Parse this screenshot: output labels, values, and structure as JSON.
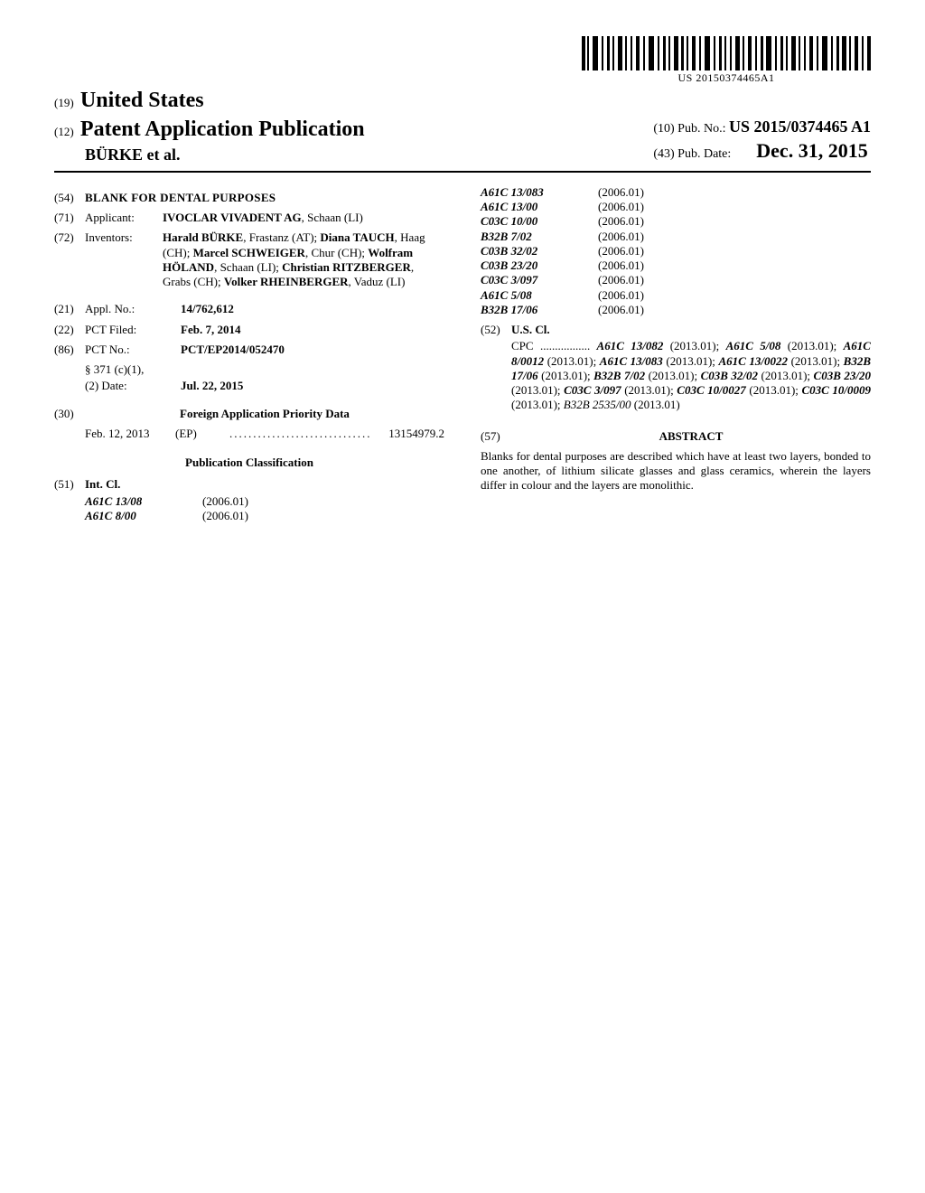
{
  "barcode": {
    "text": "US 20150374465A1"
  },
  "header": {
    "country_prefix": "(19)",
    "country": "United States",
    "pub_prefix": "(12)",
    "pub_title": "Patent Application Publication",
    "authors": "BÜRKE et al.",
    "pubno_prefix": "(10)",
    "pubno_label": "Pub. No.:",
    "pubno": "US 2015/0374465 A1",
    "pubdate_prefix": "(43)",
    "pubdate_label": "Pub. Date:",
    "pubdate": "Dec. 31, 2015"
  },
  "left": {
    "title_num": "(54)",
    "title": "BLANK FOR DENTAL PURPOSES",
    "applicant_num": "(71)",
    "applicant_label": "Applicant:",
    "applicant": "IVOCLAR VIVADENT AG",
    "applicant_loc": ", Schaan (LI)",
    "inventors_num": "(72)",
    "inventors_label": "Inventors:",
    "inventors_html": "Harald BÜRKE|, Frastanz (AT); |Diana TAUCH|, Haag (CH); |Marcel SCHWEIGER|, Chur (CH); |Wolfram HÖLAND|, Schaan (LI); |Christian RITZBERGER|, Grabs (CH); |Volker RHEINBERGER|, Vaduz (LI)",
    "appl_num": "(21)",
    "appl_label": "Appl. No.:",
    "appl_val": "14/762,612",
    "pct_filed_num": "(22)",
    "pct_filed_label": "PCT Filed:",
    "pct_filed_val": "Feb. 7, 2014",
    "pct_no_num": "(86)",
    "pct_no_label": "PCT No.:",
    "pct_no_val": "PCT/EP2014/052470",
    "s371_label": "§ 371 (c)(1),",
    "s371_date_label": "(2) Date:",
    "s371_date_val": "Jul. 22, 2015",
    "foreign_num": "(30)",
    "foreign_head": "Foreign Application Priority Data",
    "foreign_date": "Feb. 12, 2013",
    "foreign_cc": "(EP)",
    "foreign_app": "13154979.2",
    "pubclass_head": "Publication Classification",
    "intcl_num": "(51)",
    "intcl_label": "Int. Cl.",
    "intcl_left": [
      {
        "code": "A61C 13/08",
        "ver": "(2006.01)"
      },
      {
        "code": "A61C 8/00",
        "ver": "(2006.01)"
      }
    ]
  },
  "right": {
    "intcl_right": [
      {
        "code": "A61C 13/083",
        "ver": "(2006.01)"
      },
      {
        "code": "A61C 13/00",
        "ver": "(2006.01)"
      },
      {
        "code": "C03C 10/00",
        "ver": "(2006.01)"
      },
      {
        "code": "B32B 7/02",
        "ver": "(2006.01)"
      },
      {
        "code": "C03B 32/02",
        "ver": "(2006.01)"
      },
      {
        "code": "C03B 23/20",
        "ver": "(2006.01)"
      },
      {
        "code": "C03C 3/097",
        "ver": "(2006.01)"
      },
      {
        "code": "A61C 5/08",
        "ver": "(2006.01)"
      },
      {
        "code": "B32B 17/06",
        "ver": "(2006.01)"
      }
    ],
    "uscl_num": "(52)",
    "uscl_label": "U.S. Cl.",
    "cpc_label": "CPC",
    "cpc_text": "................. <b><i>A61C 13/082</i></b> (2013.01); <b><i>A61C 5/08</i></b> (2013.01); <b><i>A61C 8/0012</i></b> (2013.01); <b><i>A61C 13/083</i></b> (2013.01); <b><i>A61C 13/0022</i></b> (2013.01); <b><i>B32B 17/06</i></b> (2013.01); <b><i>B32B 7/02</i></b> (2013.01); <b><i>C03B 32/02</i></b> (2013.01); <b><i>C03B 23/20</i></b> (2013.01); <b><i>C03C 3/097</i></b> (2013.01); <b><i>C03C 10/0027</i></b> (2013.01); <b><i>C03C 10/0009</i></b> (2013.01); <i>B32B 2535/00</i> (2013.01)",
    "abstract_num": "(57)",
    "abstract_head": "ABSTRACT",
    "abstract_body": "Blanks for dental purposes are described which have at least two layers, bonded to one another, of lithium silicate glasses and glass ceramics, wherein the layers differ in colour and the layers are monolithic."
  }
}
